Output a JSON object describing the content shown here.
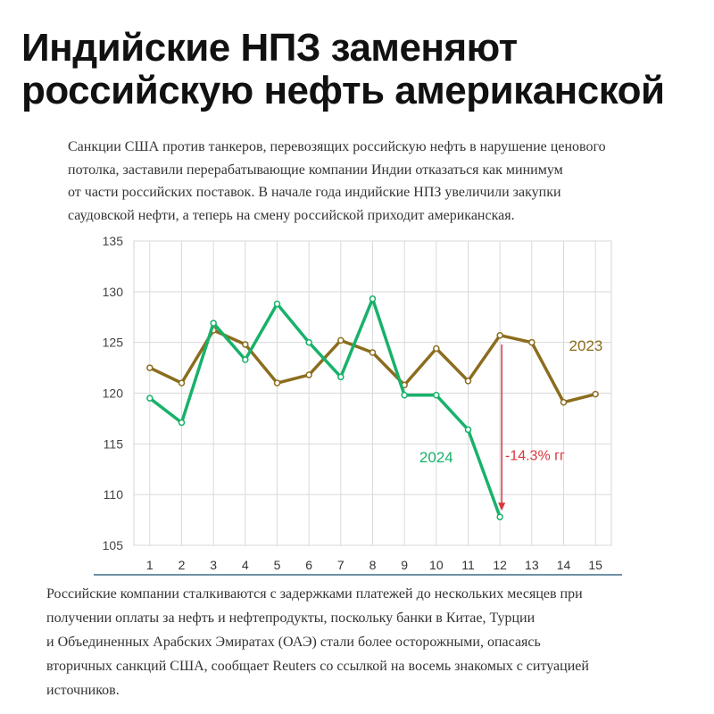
{
  "headline": {
    "line1": "Индийские НПЗ заменяют",
    "line2": "российскую нефть американской"
  },
  "lead": {
    "lines": [
      "Санкции США против танкеров, перевозящих российскую нефть в нарушение ценового",
      "потолка, заставили перерабатывающие компании Индии отказаться как минимум",
      "от части российских поставок. В начале года индийские НПЗ увеличили закупки",
      "саудовской нефти, а теперь на смену российской приходит американская."
    ]
  },
  "chart_data": {
    "type": "line",
    "title": "",
    "xlabel": "",
    "ylabel": "",
    "x": [
      1,
      2,
      3,
      4,
      5,
      6,
      7,
      8,
      9,
      10,
      11,
      12,
      13,
      14,
      15
    ],
    "ylim": [
      105,
      135
    ],
    "yticks": [
      105,
      110,
      115,
      120,
      125,
      130,
      135
    ],
    "grid": true,
    "series": [
      {
        "name": "2023",
        "color": "#8b6d1e",
        "x": [
          1,
          2,
          3,
          4,
          5,
          6,
          7,
          8,
          9,
          10,
          11,
          12,
          13,
          14,
          15
        ],
        "values": [
          122.5,
          121.0,
          126.2,
          124.8,
          121.0,
          121.8,
          125.2,
          124.0,
          120.8,
          124.4,
          121.2,
          125.7,
          125.0,
          119.1,
          119.9
        ]
      },
      {
        "name": "2024",
        "color": "#17b26a",
        "x": [
          1,
          2,
          3,
          4,
          5,
          6,
          7,
          8,
          9,
          10,
          11,
          12
        ],
        "values": [
          119.5,
          117.1,
          126.9,
          123.3,
          128.8,
          125.0,
          121.6,
          129.3,
          119.8,
          119.8,
          116.4,
          107.8
        ]
      }
    ],
    "annotation": {
      "text": "-14.3% гг",
      "color": "#d9363e",
      "x": 12,
      "from_value": 124.8,
      "to_value": 108.5
    }
  },
  "body": {
    "lines": [
      "Российские компании сталкиваются с задержками платежей до нескольких месяцев при",
      "получении оплаты за нефть и нефтепродукты, поскольку банки в Китае, Турции",
      "и Объединенных Арабских Эмиратах (ОАЭ) стали более осторожными, опасаясь",
      "вторичных санкций США, сообщает Reuters со ссылкой на восемь знакомых с ситуацией",
      "источников."
    ]
  }
}
